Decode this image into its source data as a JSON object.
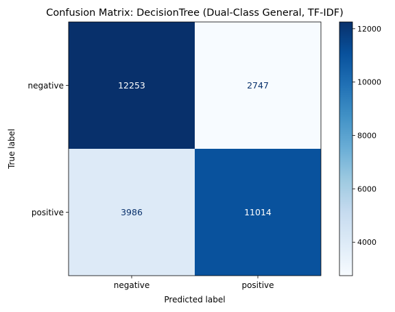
{
  "chart_data": {
    "type": "heatmap",
    "title": "Confusion Matrix: DecisionTree (Dual-Class General, TF-IDF)",
    "xlabel": "Predicted label",
    "ylabel": "True label",
    "x_categories": [
      "negative",
      "positive"
    ],
    "y_categories": [
      "negative",
      "positive"
    ],
    "values": [
      [
        12253,
        2747
      ],
      [
        3986,
        11014
      ]
    ],
    "colormap": "Blues",
    "color_range": [
      2747,
      12253
    ],
    "colorbar_ticks": [
      4000,
      6000,
      8000,
      10000,
      12000
    ],
    "colors": {
      "light_text": "#ffffff",
      "dark_text": "#08306b"
    }
  }
}
